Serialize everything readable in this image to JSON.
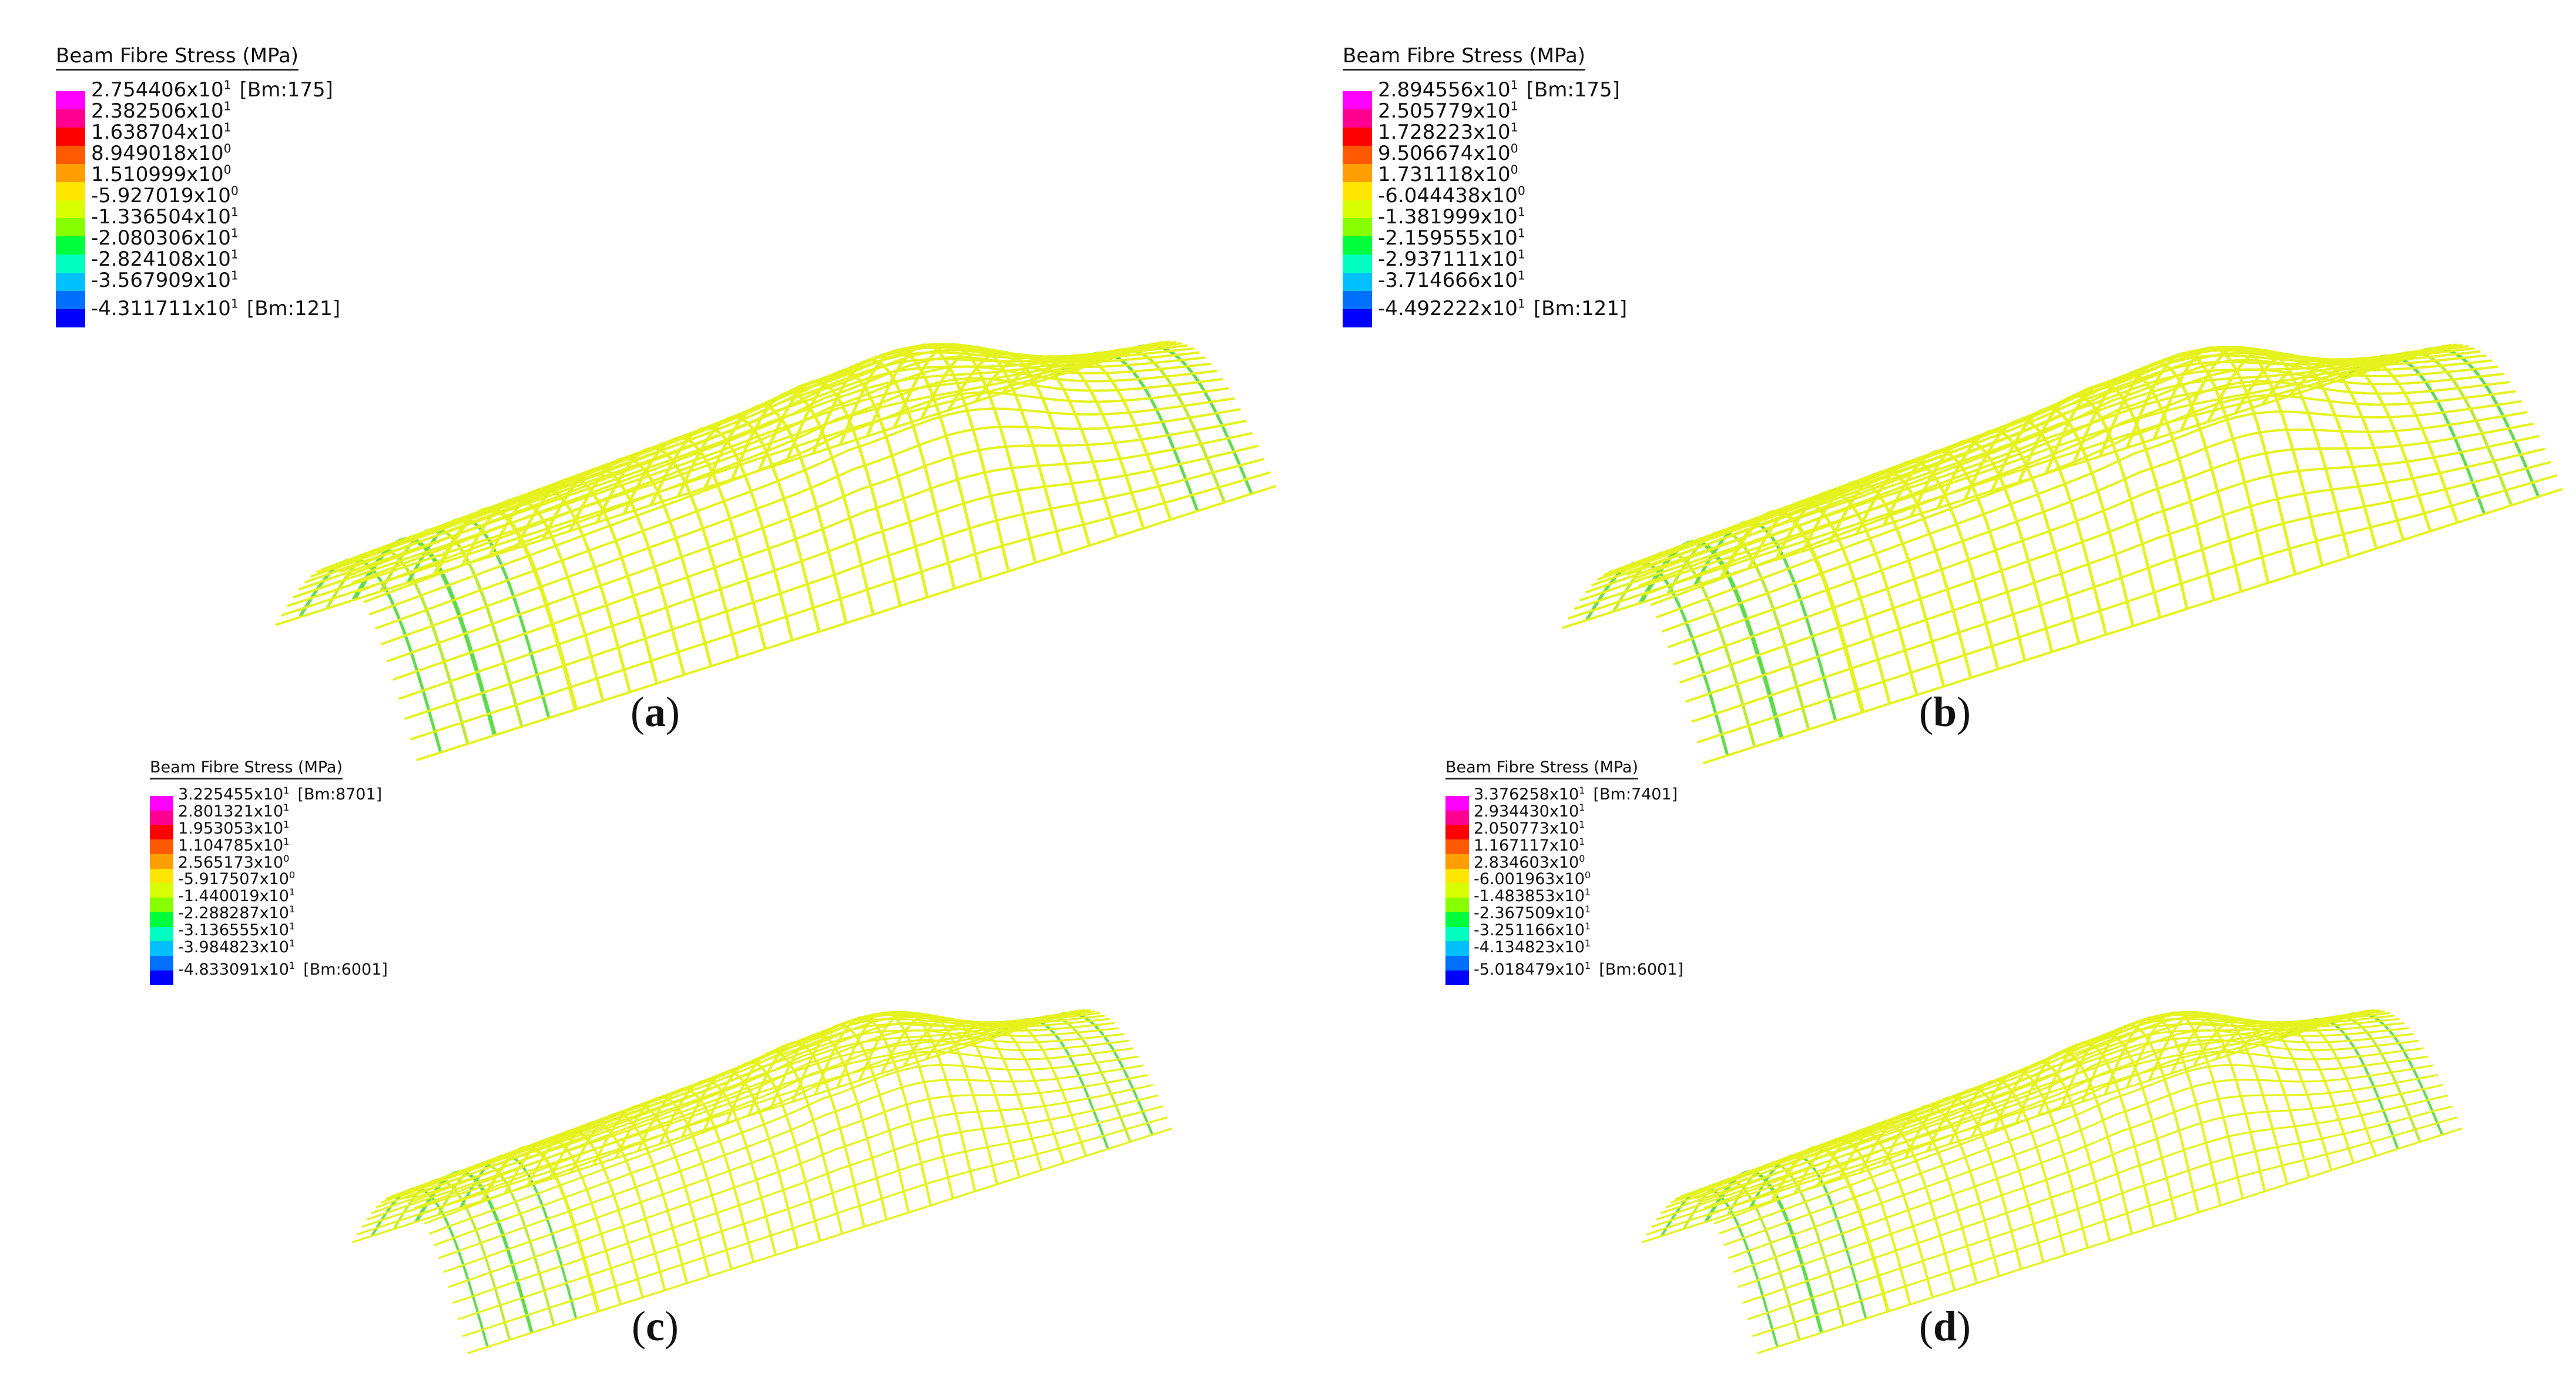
{
  "colorbar_colors": [
    "#ff00ff",
    "#ff0090",
    "#ff0000",
    "#ff5a00",
    "#ff9e00",
    "#ffe600",
    "#d8ff00",
    "#88ff00",
    "#00ff3c",
    "#00ffc0",
    "#00c0ff",
    "#0070ff",
    "#0000ff"
  ],
  "mesh_colors": {
    "yellow": "#e6f21e",
    "light_green": "#b9ec2e",
    "green": "#5edc48"
  },
  "panels": [
    {
      "id": "a",
      "caption_letter": "a",
      "legend_title": "Beam Fibre Stress  (MPa)",
      "max": {
        "mantissa": "2.754406x10",
        "exp": "1",
        "bm": "[Bm:175]"
      },
      "ticks": [
        {
          "mantissa": "2.382506x10",
          "exp": "1"
        },
        {
          "mantissa": "1.638704x10",
          "exp": "1"
        },
        {
          "mantissa": "8.949018x10",
          "exp": "0"
        },
        {
          "mantissa": "1.510999x10",
          "exp": "0"
        },
        {
          "mantissa": "-5.927019x10",
          "exp": "0"
        },
        {
          "mantissa": "-1.336504x10",
          "exp": "1"
        },
        {
          "mantissa": "-2.080306x10",
          "exp": "1"
        },
        {
          "mantissa": "-2.824108x10",
          "exp": "1"
        },
        {
          "mantissa": "-3.567909x10",
          "exp": "1"
        }
      ],
      "min": {
        "mantissa": "-4.311711x10",
        "exp": "1",
        "bm": "[Bm:121]"
      }
    },
    {
      "id": "b",
      "caption_letter": "b",
      "legend_title": "Beam Fibre Stress  (MPa)",
      "max": {
        "mantissa": "2.894556x10",
        "exp": "1",
        "bm": "[Bm:175]"
      },
      "ticks": [
        {
          "mantissa": "2.505779x10",
          "exp": "1"
        },
        {
          "mantissa": "1.728223x10",
          "exp": "1"
        },
        {
          "mantissa": "9.506674x10",
          "exp": "0"
        },
        {
          "mantissa": "1.731118x10",
          "exp": "0"
        },
        {
          "mantissa": "-6.044438x10",
          "exp": "0"
        },
        {
          "mantissa": "-1.381999x10",
          "exp": "1"
        },
        {
          "mantissa": "-2.159555x10",
          "exp": "1"
        },
        {
          "mantissa": "-2.937111x10",
          "exp": "1"
        },
        {
          "mantissa": "-3.714666x10",
          "exp": "1"
        }
      ],
      "min": {
        "mantissa": "-4.492222x10",
        "exp": "1",
        "bm": "[Bm:121]"
      }
    },
    {
      "id": "c",
      "caption_letter": "c",
      "legend_title": "Beam Fibre Stress  (MPa)",
      "max": {
        "mantissa": "3.225455x10",
        "exp": "1",
        "bm": "[Bm:8701]"
      },
      "ticks": [
        {
          "mantissa": "2.801321x10",
          "exp": "1"
        },
        {
          "mantissa": "1.953053x10",
          "exp": "1"
        },
        {
          "mantissa": "1.104785x10",
          "exp": "1"
        },
        {
          "mantissa": "2.565173x10",
          "exp": "0"
        },
        {
          "mantissa": "-5.917507x10",
          "exp": "0"
        },
        {
          "mantissa": "-1.440019x10",
          "exp": "1"
        },
        {
          "mantissa": "-2.288287x10",
          "exp": "1"
        },
        {
          "mantissa": "-3.136555x10",
          "exp": "1"
        },
        {
          "mantissa": "-3.984823x10",
          "exp": "1"
        }
      ],
      "min": {
        "mantissa": "-4.833091x10",
        "exp": "1",
        "bm": "[Bm:6001]"
      }
    },
    {
      "id": "d",
      "caption_letter": "d",
      "legend_title": "Beam Fibre Stress  (MPa)",
      "max": {
        "mantissa": "3.376258x10",
        "exp": "1",
        "bm": "[Bm:7401]"
      },
      "ticks": [
        {
          "mantissa": "2.934430x10",
          "exp": "1"
        },
        {
          "mantissa": "2.050773x10",
          "exp": "1"
        },
        {
          "mantissa": "1.167117x10",
          "exp": "1"
        },
        {
          "mantissa": "2.834603x10",
          "exp": "0"
        },
        {
          "mantissa": "-6.001963x10",
          "exp": "0"
        },
        {
          "mantissa": "-1.483853x10",
          "exp": "1"
        },
        {
          "mantissa": "-2.367509x10",
          "exp": "1"
        },
        {
          "mantissa": "-3.251166x10",
          "exp": "1"
        },
        {
          "mantissa": "-4.134823x10",
          "exp": "1"
        }
      ],
      "min": {
        "mantissa": "-5.018479x10",
        "exp": "1",
        "bm": "[Bm:6001]"
      }
    }
  ]
}
